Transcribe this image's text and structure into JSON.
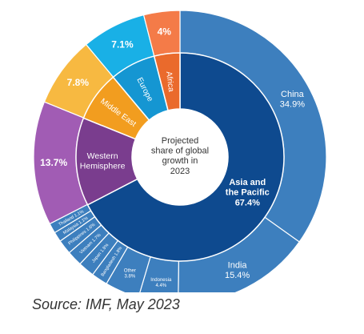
{
  "chart_data": {
    "type": "pie",
    "center_label": [
      "Projected",
      "share of global",
      "growth in",
      "2023"
    ],
    "inner_ring": [
      {
        "label": [
          "Asia and",
          "the Pacific"
        ],
        "value_label": "67.4%",
        "value": 67.4,
        "color": "#0e4a8f"
      },
      {
        "label": [
          "Western",
          "Hemisphere"
        ],
        "value_label": "",
        "value": 13.7,
        "color": "#7a3d8e"
      },
      {
        "label": [
          "Middle East"
        ],
        "value_label": "",
        "value": 7.8,
        "color": "#f29d1f"
      },
      {
        "label": [
          "Europe"
        ],
        "value_label": "",
        "value": 7.1,
        "color": "#1596d2"
      },
      {
        "label": [
          "Africa"
        ],
        "value_label": "",
        "value": 4.0,
        "color": "#ea6a2c"
      }
    ],
    "outer_ring": [
      {
        "label": "China",
        "value_label": "34.9%",
        "value": 34.9,
        "color": "#3d7fbe"
      },
      {
        "label": "India",
        "value_label": "15.4%",
        "value": 15.4,
        "color": "#3d7fbe"
      },
      {
        "label": "Indonesia",
        "value_label": "4.4%",
        "value": 4.4,
        "color": "#3d7fbe"
      },
      {
        "label": "Other",
        "value_label": "3.8%",
        "value": 3.8,
        "color": "#3d7fbe"
      },
      {
        "label": "Bangladesh",
        "value_label": "1.8%",
        "value": 1.8,
        "color": "#3d7fbe"
      },
      {
        "label": "Japan",
        "value_label": "1.8%",
        "value": 1.8,
        "color": "#3d7fbe"
      },
      {
        "label": "Vietnam",
        "value_label": "1.7%",
        "value": 1.7,
        "color": "#3d7fbe"
      },
      {
        "label": "Philippines",
        "value_label": "1.6%",
        "value": 1.6,
        "color": "#3d7fbe"
      },
      {
        "label": "Malaysia",
        "value_label": "1.1%",
        "value": 1.1,
        "color": "#3d7fbe"
      },
      {
        "label": "Thailand",
        "value_label": "1.1%",
        "value": 1.1,
        "color": "#3d7fbe"
      },
      {
        "label": "",
        "value_label": "13.7%",
        "value": 13.7,
        "color": "#a15cb4"
      },
      {
        "label": "",
        "value_label": "7.8%",
        "value": 7.8,
        "color": "#f7b941"
      },
      {
        "label": "",
        "value_label": "7.1%",
        "value": 7.1,
        "color": "#19b0e6"
      },
      {
        "label": "",
        "value_label": "4%",
        "value": 4.0,
        "color": "#f47b48"
      }
    ]
  },
  "source": "Source: IMF, May 2023"
}
